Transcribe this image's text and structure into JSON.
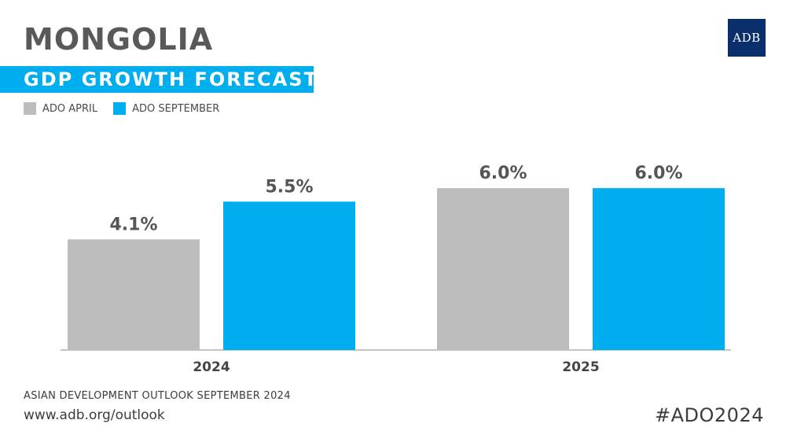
{
  "header": {
    "title": "MONGOLIA",
    "subtitle": "GDP GROWTH FORECAST",
    "logo": "ADB"
  },
  "colors": {
    "april": "#bdbdbd",
    "september": "#00aeef",
    "band": "#00aeef"
  },
  "chart_data": {
    "type": "bar",
    "title": "GDP GROWTH FORECAST",
    "categories": [
      "2024",
      "2025"
    ],
    "series": [
      {
        "name": "ADO APRIL",
        "values": [
          4.1,
          6.0
        ],
        "labels": [
          "4.1%",
          "6.0%"
        ]
      },
      {
        "name": "ADO SEPTEMBER",
        "values": [
          5.5,
          6.0
        ],
        "labels": [
          "5.5%",
          "6.0%"
        ]
      }
    ],
    "xlabel": "",
    "ylabel": "",
    "ylim": [
      0,
      6.0
    ],
    "grid": false,
    "legend_position": "top-left"
  },
  "footer": {
    "source": "ASIAN DEVELOPMENT OUTLOOK SEPTEMBER 2024",
    "url": "www.adb.org/outlook",
    "hashtag": "#ADO2024"
  }
}
